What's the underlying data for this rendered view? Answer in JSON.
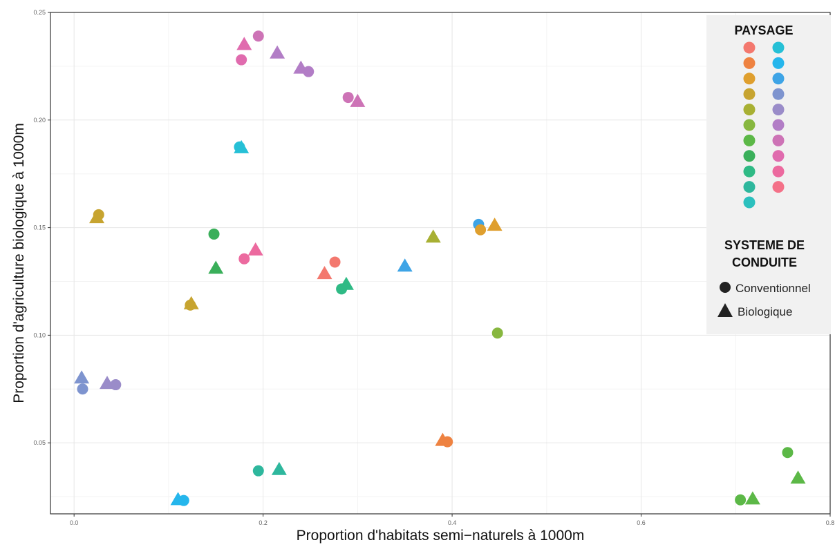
{
  "chart_data": {
    "type": "scatter",
    "xlabel": "Proportion d'habitats semi−naturels à 1000m",
    "ylabel": "Proportion d'agriculture biologique à 1000m",
    "xlim": [
      -0.025,
      0.8
    ],
    "ylim": [
      0.017,
      0.25
    ],
    "x_ticks": [
      0.0,
      0.2,
      0.4,
      0.6,
      0.8
    ],
    "x_tick_labels": [
      "0.0",
      "0.2",
      "0.4",
      "0.6",
      "0.8"
    ],
    "y_ticks": [
      0.05,
      0.1,
      0.15,
      0.2,
      0.25
    ],
    "y_tick_labels": [
      "0.05",
      "0.10",
      "0.15",
      "0.20",
      "0.25"
    ],
    "grid": true,
    "legend_placement": "top-right",
    "legend": {
      "color_title": "PAYSAGE",
      "shape_title_line1": "SYSTEME DE",
      "shape_title_line2": "CONDUITE",
      "shape_entries": [
        {
          "label": "Conventionnel",
          "shape": "circle"
        },
        {
          "label": "Biologique",
          "shape": "triangle"
        }
      ]
    },
    "palette": [
      "#F3786E",
      "#EE8241",
      "#DF9F2E",
      "#C7A430",
      "#A8B033",
      "#87B73F",
      "#5CB847",
      "#3AAF5A",
      "#2FBA85",
      "#2EB79D",
      "#2CC0BE",
      "#26C0D6",
      "#25B6EC",
      "#3EA4E6",
      "#7E94CF",
      "#9A8CC9",
      "#B27DC6",
      "#CD73B6",
      "#E06BAE",
      "#EC6A9F",
      "#F47188"
    ],
    "legend_swatches": [
      {
        "col": 0,
        "color": "#F3786E"
      },
      {
        "col": 0,
        "color": "#EE8241"
      },
      {
        "col": 0,
        "color": "#DF9F2E"
      },
      {
        "col": 0,
        "color": "#C7A430"
      },
      {
        "col": 0,
        "color": "#A8B033"
      },
      {
        "col": 0,
        "color": "#87B73F"
      },
      {
        "col": 0,
        "color": "#5CB847"
      },
      {
        "col": 0,
        "color": "#3AAF5A"
      },
      {
        "col": 0,
        "color": "#2FBA85"
      },
      {
        "col": 0,
        "color": "#2EB79D"
      },
      {
        "col": 0,
        "color": "#2CC0BE"
      },
      {
        "col": 1,
        "color": "#26C0D6"
      },
      {
        "col": 1,
        "color": "#25B6EC"
      },
      {
        "col": 1,
        "color": "#3EA4E6"
      },
      {
        "col": 1,
        "color": "#7E94CF"
      },
      {
        "col": 1,
        "color": "#9A8CC9"
      },
      {
        "col": 1,
        "color": "#B27DC6"
      },
      {
        "col": 1,
        "color": "#CD73B6"
      },
      {
        "col": 1,
        "color": "#E06BAE"
      },
      {
        "col": 1,
        "color": "#EC6A9F"
      },
      {
        "col": 1,
        "color": "#F47188"
      }
    ],
    "points": [
      {
        "x": 0.195,
        "y": 0.239,
        "shape": "circle",
        "color": "#CD73B6"
      },
      {
        "x": 0.18,
        "y": 0.235,
        "shape": "triangle",
        "color": "#E06BAE"
      },
      {
        "x": 0.215,
        "y": 0.231,
        "shape": "triangle",
        "color": "#B27DC6"
      },
      {
        "x": 0.24,
        "y": 0.224,
        "shape": "triangle",
        "color": "#B27DC6"
      },
      {
        "x": 0.248,
        "y": 0.2225,
        "shape": "circle",
        "color": "#B27DC6"
      },
      {
        "x": 0.177,
        "y": 0.228,
        "shape": "circle",
        "color": "#E06BAE"
      },
      {
        "x": 0.29,
        "y": 0.2105,
        "shape": "circle",
        "color": "#CD73B6"
      },
      {
        "x": 0.3,
        "y": 0.2085,
        "shape": "triangle",
        "color": "#CD73B6"
      },
      {
        "x": 0.175,
        "y": 0.1875,
        "shape": "circle",
        "color": "#26C0D6"
      },
      {
        "x": 0.177,
        "y": 0.187,
        "shape": "triangle",
        "color": "#26C0D6"
      },
      {
        "x": 0.026,
        "y": 0.156,
        "shape": "circle",
        "color": "#C7A430"
      },
      {
        "x": 0.024,
        "y": 0.1545,
        "shape": "triangle",
        "color": "#C7A430"
      },
      {
        "x": 0.148,
        "y": 0.147,
        "shape": "circle",
        "color": "#3AAF5A"
      },
      {
        "x": 0.15,
        "y": 0.131,
        "shape": "triangle",
        "color": "#3AAF5A"
      },
      {
        "x": 0.192,
        "y": 0.1395,
        "shape": "triangle",
        "color": "#EC6A9F"
      },
      {
        "x": 0.18,
        "y": 0.1355,
        "shape": "circle",
        "color": "#EC6A9F"
      },
      {
        "x": 0.265,
        "y": 0.1285,
        "shape": "triangle",
        "color": "#F3786E"
      },
      {
        "x": 0.276,
        "y": 0.134,
        "shape": "circle",
        "color": "#F3786E"
      },
      {
        "x": 0.288,
        "y": 0.1235,
        "shape": "triangle",
        "color": "#2FBA85"
      },
      {
        "x": 0.283,
        "y": 0.1215,
        "shape": "circle",
        "color": "#2FBA85"
      },
      {
        "x": 0.35,
        "y": 0.132,
        "shape": "triangle",
        "color": "#3EA4E6"
      },
      {
        "x": 0.38,
        "y": 0.1455,
        "shape": "triangle",
        "color": "#A8B033"
      },
      {
        "x": 0.428,
        "y": 0.1515,
        "shape": "circle",
        "color": "#3EA4E6"
      },
      {
        "x": 0.43,
        "y": 0.149,
        "shape": "circle",
        "color": "#DF9F2E"
      },
      {
        "x": 0.445,
        "y": 0.151,
        "shape": "triangle",
        "color": "#DF9F2E"
      },
      {
        "x": 0.124,
        "y": 0.1145,
        "shape": "triangle",
        "color": "#C7A430"
      },
      {
        "x": 0.123,
        "y": 0.114,
        "shape": "circle",
        "color": "#C7A430"
      },
      {
        "x": 0.448,
        "y": 0.101,
        "shape": "circle",
        "color": "#87B73F"
      },
      {
        "x": 0.008,
        "y": 0.08,
        "shape": "triangle",
        "color": "#7E94CF"
      },
      {
        "x": 0.009,
        "y": 0.075,
        "shape": "circle",
        "color": "#7E94CF"
      },
      {
        "x": 0.035,
        "y": 0.0775,
        "shape": "triangle",
        "color": "#9A8CC9"
      },
      {
        "x": 0.044,
        "y": 0.077,
        "shape": "circle",
        "color": "#9A8CC9"
      },
      {
        "x": 0.39,
        "y": 0.051,
        "shape": "triangle",
        "color": "#EE8241"
      },
      {
        "x": 0.395,
        "y": 0.0505,
        "shape": "circle",
        "color": "#EE8241"
      },
      {
        "x": 0.195,
        "y": 0.037,
        "shape": "circle",
        "color": "#2EB79D"
      },
      {
        "x": 0.217,
        "y": 0.0375,
        "shape": "triangle",
        "color": "#2EB79D"
      },
      {
        "x": 0.11,
        "y": 0.0235,
        "shape": "triangle",
        "color": "#25B6EC"
      },
      {
        "x": 0.116,
        "y": 0.0232,
        "shape": "circle",
        "color": "#25B6EC"
      },
      {
        "x": 0.755,
        "y": 0.0455,
        "shape": "circle",
        "color": "#5CB847"
      },
      {
        "x": 0.766,
        "y": 0.0335,
        "shape": "triangle",
        "color": "#5CB847"
      },
      {
        "x": 0.705,
        "y": 0.0235,
        "shape": "circle",
        "color": "#5CB847"
      },
      {
        "x": 0.718,
        "y": 0.0238,
        "shape": "triangle",
        "color": "#5CB847"
      }
    ]
  }
}
